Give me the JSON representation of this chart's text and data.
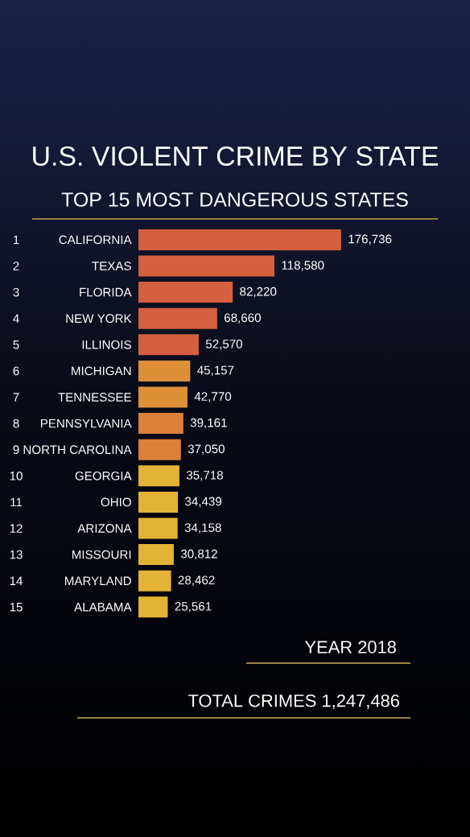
{
  "chart_data": {
    "type": "bar",
    "orientation": "horizontal",
    "title": "U.S. VIOLENT CRIME BY STATE",
    "subtitle": "TOP 15 MOST DANGEROUS STATES",
    "categories": [
      "CALIFORNIA",
      "TEXAS",
      "FLORIDA",
      "NEW YORK",
      "ILLINOIS",
      "MICHIGAN",
      "TENNESSEE",
      "PENNSYLVANIA",
      "NORTH CAROLINA",
      "GEORGIA",
      "OHIO",
      "ARIZONA",
      "MISSOURI",
      "MARYLAND",
      "ALABAMA"
    ],
    "values": [
      176736,
      118580,
      82220,
      68660,
      52570,
      45157,
      42770,
      39161,
      37050,
      35718,
      34439,
      34158,
      30812,
      28462,
      25561
    ],
    "value_labels": [
      "176,736",
      "118,580",
      "82,220",
      "68,660",
      "52,570",
      "45,157",
      "42,770",
      "39,161",
      "37,050",
      "35,718",
      "34,439",
      "34,158",
      "30,812",
      "28,462",
      "25,561"
    ],
    "colors": [
      "#d4603f",
      "#d4603f",
      "#d4603f",
      "#d4603f",
      "#d4603f",
      "#de9038",
      "#de9038",
      "#dc803a",
      "#dc803a",
      "#e3b335",
      "#e3b335",
      "#e3b335",
      "#e3b335",
      "#e3b335",
      "#e3b335"
    ],
    "annotations": [
      "1",
      "2",
      "3",
      "4",
      "5",
      "6",
      "7",
      "8",
      "9",
      "10",
      "11",
      "12",
      "13",
      "14",
      "15",
      "YEAR   2018",
      "TOTAL CRIMES   1,247,486"
    ]
  }
}
